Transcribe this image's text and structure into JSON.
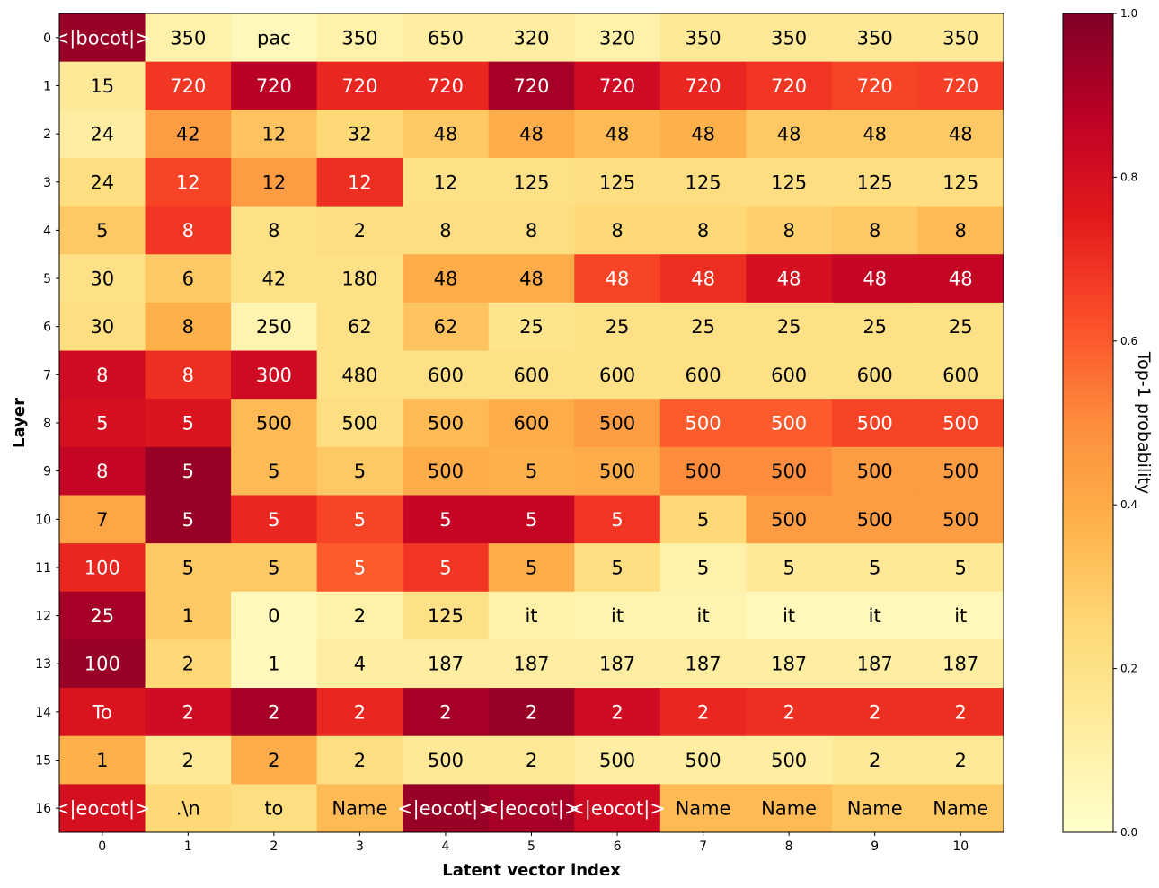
{
  "chart_data": {
    "type": "heatmap",
    "xlabel": "Latent vector index",
    "ylabel": "Layer",
    "colorbar_label": "Top-1 probability",
    "colorbar_range": [
      0,
      1
    ],
    "colorbar_ticks": [
      "0.0",
      "0.2",
      "0.4",
      "0.6",
      "0.8",
      "1.0"
    ],
    "colormap": "YlOrRd",
    "x_ticks": [
      "0",
      "1",
      "2",
      "3",
      "4",
      "5",
      "6",
      "7",
      "8",
      "9",
      "10"
    ],
    "y_ticks": [
      "0",
      "1",
      "2",
      "3",
      "4",
      "5",
      "6",
      "7",
      "8",
      "9",
      "10",
      "11",
      "12",
      "13",
      "14",
      "15",
      "16"
    ],
    "cell_text": [
      [
        "<|bocot|>",
        "350",
        "pac",
        "350",
        "650",
        "320",
        "320",
        "350",
        "350",
        "350",
        "350"
      ],
      [
        "15",
        "720",
        "720",
        "720",
        "720",
        "720",
        "720",
        "720",
        "720",
        "720",
        "720"
      ],
      [
        "24",
        "42",
        "12",
        "32",
        "48",
        "48",
        "48",
        "48",
        "48",
        "48",
        "48"
      ],
      [
        "24",
        "12",
        "12",
        "12",
        "12",
        "125",
        "125",
        "125",
        "125",
        "125",
        "125"
      ],
      [
        "5",
        "8",
        "8",
        "2",
        "8",
        "8",
        "8",
        "8",
        "8",
        "8",
        "8"
      ],
      [
        "30",
        "6",
        "42",
        "180",
        "48",
        "48",
        "48",
        "48",
        "48",
        "48",
        "48"
      ],
      [
        "30",
        "8",
        "250",
        "62",
        "62",
        "25",
        "25",
        "25",
        "25",
        "25",
        "25"
      ],
      [
        "8",
        "8",
        "300",
        "480",
        "600",
        "600",
        "600",
        "600",
        "600",
        "600",
        "600"
      ],
      [
        "5",
        "5",
        "500",
        "500",
        "500",
        "600",
        "500",
        "500",
        "500",
        "500",
        "500"
      ],
      [
        "8",
        "5",
        "5",
        "5",
        "500",
        "5",
        "500",
        "500",
        "500",
        "500",
        "500"
      ],
      [
        "7",
        "5",
        "5",
        "5",
        "5",
        "5",
        "5",
        "5",
        "500",
        "500",
        "500"
      ],
      [
        "100",
        "5",
        "5",
        "5",
        "5",
        "5",
        "5",
        "5",
        "5",
        "5",
        "5"
      ],
      [
        "25",
        "1",
        "0",
        "2",
        "125",
        "it",
        "it",
        "it",
        "it",
        "it",
        "it"
      ],
      [
        "100",
        "2",
        "1",
        "4",
        "187",
        "187",
        "187",
        "187",
        "187",
        "187",
        "187"
      ],
      [
        "To",
        "2",
        "2",
        "2",
        "2",
        "2",
        "2",
        "2",
        "2",
        "2",
        "2"
      ],
      [
        "1",
        "2",
        "2",
        "2",
        "500",
        "2",
        "500",
        "500",
        "500",
        "2",
        "2"
      ],
      [
        "<|eocot|>",
        ".\\n",
        "to",
        "Name",
        "<|eocot|>",
        "<|eocot|>",
        "<|eocot|>",
        "Name",
        "Name",
        "Name",
        "Name"
      ]
    ],
    "values": [
      [
        0.95,
        0.1,
        0.05,
        0.1,
        0.12,
        0.12,
        0.1,
        0.15,
        0.15,
        0.15,
        0.15
      ],
      [
        0.15,
        0.68,
        0.88,
        0.72,
        0.72,
        0.92,
        0.82,
        0.72,
        0.68,
        0.65,
        0.66
      ],
      [
        0.12,
        0.45,
        0.32,
        0.25,
        0.3,
        0.4,
        0.35,
        0.38,
        0.3,
        0.3,
        0.3
      ],
      [
        0.22,
        0.65,
        0.45,
        0.7,
        0.2,
        0.2,
        0.22,
        0.22,
        0.22,
        0.22,
        0.22
      ],
      [
        0.3,
        0.68,
        0.2,
        0.22,
        0.22,
        0.22,
        0.25,
        0.25,
        0.28,
        0.3,
        0.35
      ],
      [
        0.2,
        0.3,
        0.2,
        0.2,
        0.4,
        0.4,
        0.65,
        0.7,
        0.8,
        0.85,
        0.85
      ],
      [
        0.22,
        0.38,
        0.08,
        0.2,
        0.32,
        0.18,
        0.2,
        0.2,
        0.2,
        0.2,
        0.2
      ],
      [
        0.82,
        0.7,
        0.82,
        0.2,
        0.2,
        0.2,
        0.2,
        0.2,
        0.2,
        0.2,
        0.2
      ],
      [
        0.8,
        0.78,
        0.35,
        0.22,
        0.35,
        0.4,
        0.45,
        0.6,
        0.6,
        0.65,
        0.65
      ],
      [
        0.85,
        0.95,
        0.35,
        0.3,
        0.4,
        0.38,
        0.4,
        0.5,
        0.5,
        0.45,
        0.45
      ],
      [
        0.42,
        0.95,
        0.72,
        0.65,
        0.85,
        0.85,
        0.68,
        0.25,
        0.45,
        0.45,
        0.45
      ],
      [
        0.72,
        0.3,
        0.3,
        0.6,
        0.68,
        0.4,
        0.22,
        0.1,
        0.15,
        0.15,
        0.15
      ],
      [
        0.92,
        0.3,
        0.05,
        0.1,
        0.2,
        0.1,
        0.08,
        0.08,
        0.05,
        0.05,
        0.05
      ],
      [
        0.95,
        0.25,
        0.05,
        0.12,
        0.12,
        0.12,
        0.12,
        0.12,
        0.12,
        0.12,
        0.12
      ],
      [
        0.78,
        0.82,
        0.92,
        0.72,
        0.92,
        0.95,
        0.82,
        0.72,
        0.7,
        0.7,
        0.7
      ],
      [
        0.38,
        0.15,
        0.4,
        0.22,
        0.15,
        0.15,
        0.12,
        0.12,
        0.12,
        0.15,
        0.15
      ],
      [
        0.8,
        0.25,
        0.22,
        0.35,
        0.95,
        0.92,
        0.82,
        0.35,
        0.35,
        0.3,
        0.3
      ]
    ]
  }
}
